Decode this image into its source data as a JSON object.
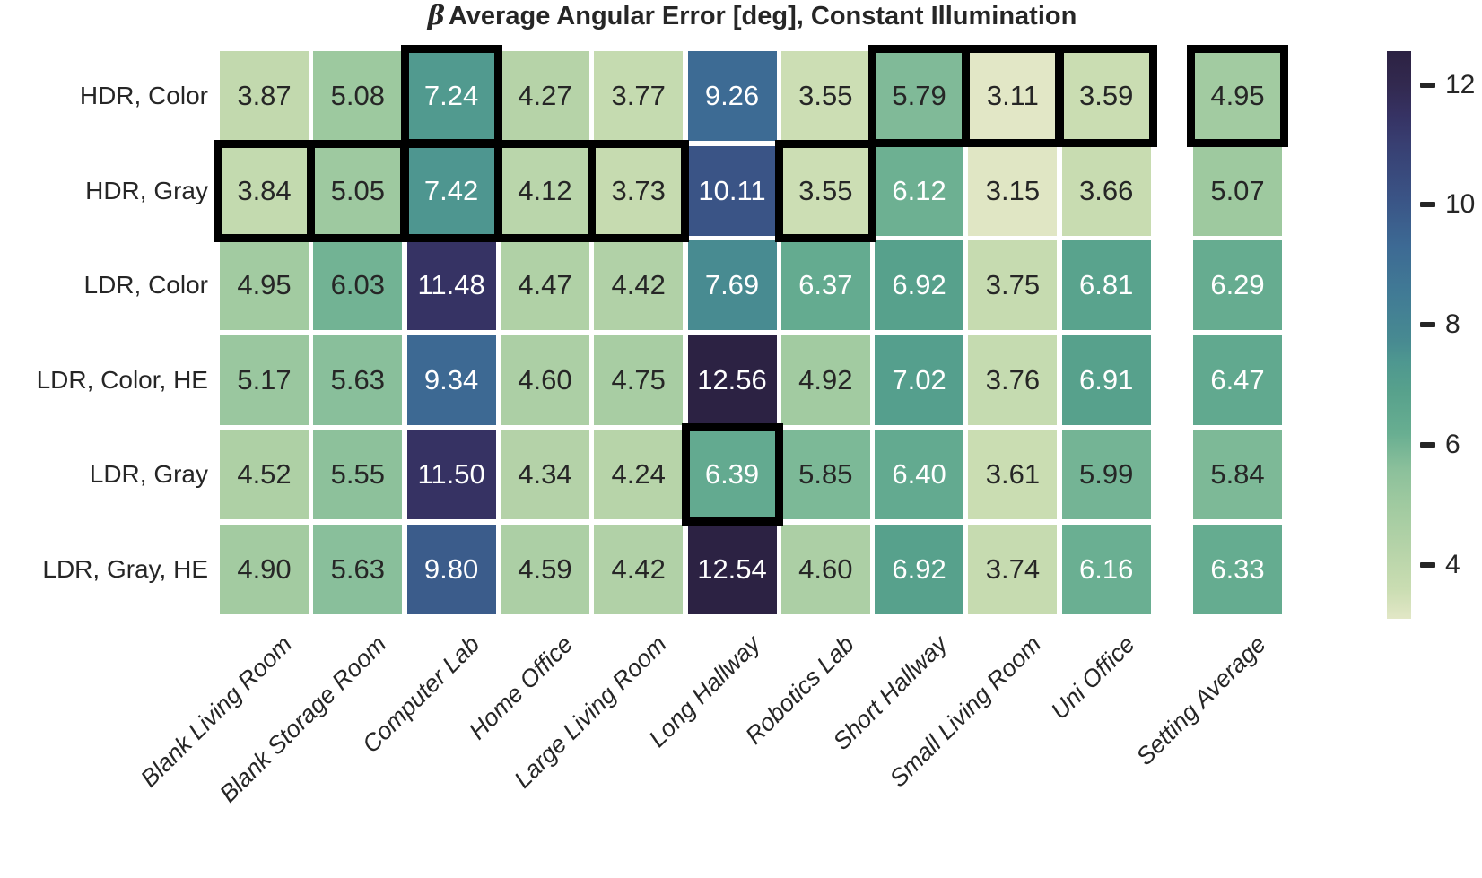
{
  "title": {
    "prefix": "β",
    "text": "Average Angular Error [deg], Constant Illumination"
  },
  "chart_data": {
    "type": "heatmap",
    "title": "β Average Angular Error [deg], Constant Illumination",
    "row_labels": [
      "HDR, Color",
      "HDR, Gray",
      "LDR, Color",
      "LDR, Color, HE",
      "LDR, Gray",
      "LDR, Gray, HE"
    ],
    "col_labels": [
      "Blank Living Room",
      "Blank Storage Room",
      "Computer Lab",
      "Home Office",
      "Large Living Room",
      "Long Hallway",
      "Robotics Lab",
      "Short Hallway",
      "Small Living Room",
      "Uni Office",
      "Setting Average"
    ],
    "values": [
      [
        "3.87",
        "5.08",
        "7.24",
        "4.27",
        "3.77",
        "9.26",
        "3.55",
        "5.79",
        "3.11",
        "3.59",
        "4.95"
      ],
      [
        "3.84",
        "5.05",
        "7.42",
        "4.12",
        "3.73",
        "10.11",
        "3.55",
        "6.12",
        "3.15",
        "3.66",
        "5.07"
      ],
      [
        "4.95",
        "6.03",
        "11.48",
        "4.47",
        "4.42",
        "7.69",
        "6.37",
        "6.92",
        "3.75",
        "6.81",
        "6.29"
      ],
      [
        "5.17",
        "5.63",
        "9.34",
        "4.60",
        "4.75",
        "12.56",
        "4.92",
        "7.02",
        "3.76",
        "6.91",
        "6.47"
      ],
      [
        "4.52",
        "5.55",
        "11.50",
        "4.34",
        "4.24",
        "6.39",
        "5.85",
        "6.40",
        "3.61",
        "5.99",
        "5.84"
      ],
      [
        "4.90",
        "5.63",
        "9.80",
        "4.59",
        "4.42",
        "12.54",
        "4.60",
        "6.92",
        "3.74",
        "6.16",
        "6.33"
      ]
    ],
    "highlighted_cells": [
      [
        0,
        2
      ],
      [
        0,
        7
      ],
      [
        0,
        8
      ],
      [
        0,
        9
      ],
      [
        0,
        10
      ],
      [
        1,
        0
      ],
      [
        1,
        1
      ],
      [
        1,
        2
      ],
      [
        1,
        3
      ],
      [
        1,
        4
      ],
      [
        1,
        6
      ],
      [
        4,
        5
      ]
    ],
    "colorbar": {
      "position": "right",
      "vmin": 3.11,
      "vmax": 12.56,
      "ticks": [
        {
          "value": 12,
          "label": "12"
        },
        {
          "value": 10,
          "label": "10"
        },
        {
          "value": 8,
          "label": "8"
        },
        {
          "value": 6,
          "label": "6"
        },
        {
          "value": 4,
          "label": "4"
        }
      ]
    },
    "colormap_stops": [
      [
        3.11,
        "#e2e7c6"
      ],
      [
        3.6,
        "#caddb2"
      ],
      [
        4.3,
        "#b5d3a8"
      ],
      [
        5.0,
        "#a0caa0"
      ],
      [
        5.6,
        "#8bc09b"
      ],
      [
        6.2,
        "#68ae91"
      ],
      [
        6.9,
        "#57a18c"
      ],
      [
        7.4,
        "#4e9790"
      ],
      [
        7.7,
        "#488b91"
      ],
      [
        8.5,
        "#417b95"
      ],
      [
        9.3,
        "#3d6a94"
      ],
      [
        10.1,
        "#3a5486"
      ],
      [
        11.0,
        "#383f72"
      ],
      [
        11.5,
        "#363263"
      ],
      [
        12.0,
        "#32294f"
      ],
      [
        12.56,
        "#2c2243"
      ]
    ],
    "annotation_light_threshold": 6.05,
    "colors": {
      "annotation_dark": "#262626",
      "annotation_light": "#ffffff",
      "highlight_box": "#000000",
      "background": "#ffffff",
      "text": "#262626"
    },
    "legend_position": "right",
    "grid": false
  }
}
